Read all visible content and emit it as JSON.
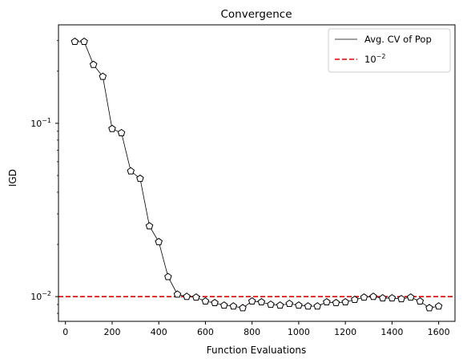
{
  "chart_data": {
    "type": "line",
    "title": "Convergence",
    "xlabel": "Function Evaluations",
    "ylabel": "IGD",
    "x_scale": "linear",
    "y_scale": "log",
    "xlim": [
      -30,
      1670
    ],
    "ylim": [
      0.0072,
      0.37
    ],
    "x_ticks": [
      0,
      200,
      400,
      600,
      800,
      1000,
      1200,
      1400,
      1600
    ],
    "x_tick_labels": [
      "0",
      "200",
      "400",
      "600",
      "800",
      "1000",
      "1200",
      "1400",
      "1600"
    ],
    "y_major_ticks": [
      0.01,
      0.1
    ],
    "y_tick_labels": [
      "10",
      "10"
    ],
    "y_tick_exponents": [
      "−2",
      "−1"
    ],
    "y_minor_ticks": [
      0.008,
      0.009,
      0.02,
      0.03,
      0.04,
      0.05,
      0.06,
      0.07,
      0.08,
      0.09,
      0.2,
      0.3
    ],
    "grid": false,
    "legend_position": "top-right",
    "series": [
      {
        "name": "Avg. CV of Pop",
        "color": "#000000",
        "marker": "pentagon",
        "x": [
          40,
          80,
          120,
          160,
          200,
          240,
          280,
          320,
          360,
          400,
          440,
          480,
          520,
          560,
          600,
          640,
          680,
          720,
          760,
          800,
          840,
          880,
          920,
          960,
          1000,
          1040,
          1080,
          1120,
          1160,
          1200,
          1240,
          1280,
          1320,
          1360,
          1400,
          1440,
          1480,
          1520,
          1560,
          1600
        ],
        "y": [
          0.296,
          0.296,
          0.218,
          0.186,
          0.093,
          0.088,
          0.053,
          0.048,
          0.0255,
          0.0207,
          0.013,
          0.0103,
          0.01,
          0.0099,
          0.0094,
          0.0092,
          0.0089,
          0.0088,
          0.0086,
          0.0094,
          0.0093,
          0.009,
          0.0089,
          0.0091,
          0.0089,
          0.0088,
          0.0088,
          0.0093,
          0.0092,
          0.0093,
          0.0096,
          0.0099,
          0.01,
          0.0098,
          0.0098,
          0.0097,
          0.0099,
          0.0094,
          0.0086,
          0.0088
        ]
      }
    ],
    "reference_line": {
      "label_base": "10",
      "label_exp": "−2",
      "y": 0.01,
      "color": "#e00000",
      "style": "dashed"
    }
  }
}
